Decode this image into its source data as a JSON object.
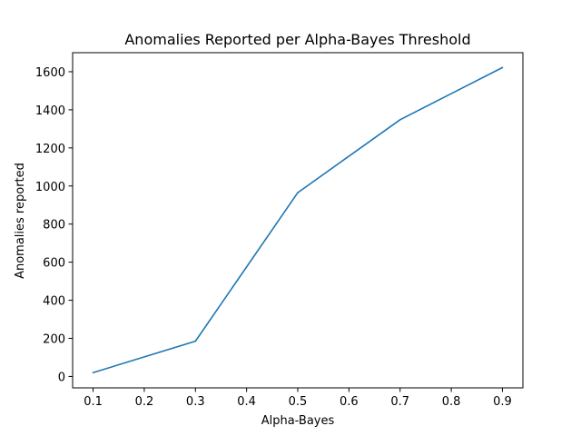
{
  "chart_data": {
    "type": "line",
    "title": "Anomalies Reported per Alpha-Bayes Threshold",
    "xlabel": "Alpha-Bayes",
    "ylabel": "Anomalies reported",
    "xlim": [
      0.06,
      0.94
    ],
    "ylim": [
      -60,
      1700
    ],
    "xticks": [
      0.1,
      0.2,
      0.3,
      0.4,
      0.5,
      0.6,
      0.7,
      0.8,
      0.9
    ],
    "xtick_labels": [
      "0.1",
      "0.2",
      "0.3",
      "0.4",
      "0.5",
      "0.6",
      "0.7",
      "0.8",
      "0.9"
    ],
    "yticks": [
      0,
      200,
      400,
      600,
      800,
      1000,
      1200,
      1400,
      1600
    ],
    "ytick_labels": [
      "0",
      "200",
      "400",
      "600",
      "800",
      "1000",
      "1200",
      "1400",
      "1600"
    ],
    "grid": false,
    "legend": "none",
    "series": [
      {
        "color": "#1f77b4",
        "x": [
          0.1,
          0.3,
          0.5,
          0.7,
          0.9
        ],
        "y": [
          20,
          185,
          965,
          1348,
          1622
        ]
      }
    ]
  }
}
